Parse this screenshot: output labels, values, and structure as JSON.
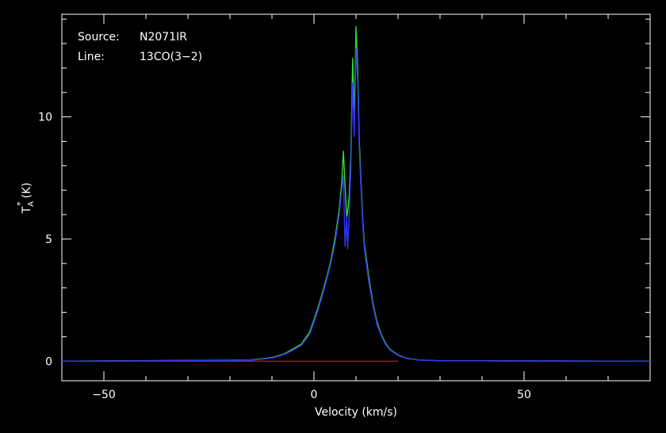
{
  "chart_data": {
    "type": "line",
    "title": "",
    "xlabel": "Velocity (km/s)",
    "ylabel": "T",
    "ylabel_sub": "A",
    "ylabel_sup": "*",
    "ylabel_unit": "(K)",
    "xlim": [
      -60,
      80
    ],
    "ylim": [
      -0.8,
      14.2
    ],
    "x_ticks": [
      -50,
      0,
      50
    ],
    "x_tick_labels": [
      "−50",
      "0",
      "50"
    ],
    "y_ticks": [
      0,
      5,
      10
    ],
    "y_tick_labels": [
      "0",
      "5",
      "10"
    ],
    "grid": false,
    "legend": "none",
    "annotations": [
      {
        "label": "Source:",
        "value": "N2071IR"
      },
      {
        "label": "Line:",
        "value": "13CO(3−2)"
      }
    ],
    "baseline": {
      "y": 0,
      "x_start": -60,
      "x_end": 20,
      "color": "#c83232"
    },
    "series": [
      {
        "color": "#32dc32",
        "x": [
          -60,
          -15,
          -10,
          -7,
          -5,
          -3,
          -1,
          0,
          1,
          2,
          3,
          4,
          5,
          6,
          6.6,
          7,
          7.4,
          7.8,
          8,
          8.4,
          8.8,
          9.2,
          9.6,
          10,
          10.4,
          10.8,
          11.2,
          11.6,
          12,
          13,
          14,
          15,
          16,
          17,
          18,
          20,
          22,
          25,
          30,
          80
        ],
        "y": [
          0,
          0.05,
          0.15,
          0.3,
          0.5,
          0.7,
          1.2,
          1.7,
          2.2,
          2.8,
          3.4,
          4.1,
          5.0,
          6.2,
          7.3,
          8.6,
          7.2,
          5.9,
          6.1,
          6.8,
          8.5,
          12.4,
          10.0,
          13.7,
          12.0,
          9.0,
          7.3,
          5.8,
          4.8,
          3.5,
          2.4,
          1.6,
          1.1,
          0.75,
          0.5,
          0.25,
          0.12,
          0.05,
          0.02,
          0
        ]
      },
      {
        "color": "#3232ff",
        "x": [
          -60,
          -15,
          -10,
          -7,
          -5,
          -3,
          -1,
          0,
          1,
          2,
          3,
          4,
          5,
          6,
          6.6,
          7,
          7.4,
          7.8,
          8,
          8.4,
          8.8,
          9.2,
          9.6,
          10,
          10.4,
          10.8,
          11.2,
          11.6,
          12,
          13,
          14,
          15,
          16,
          17,
          18,
          20,
          22,
          25,
          30,
          80
        ],
        "y": [
          0,
          0.04,
          0.13,
          0.28,
          0.45,
          0.65,
          1.1,
          1.6,
          2.1,
          2.7,
          3.3,
          4.0,
          4.8,
          6.0,
          7.0,
          7.6,
          4.7,
          5.9,
          4.6,
          6.0,
          8.0,
          11.4,
          9.2,
          12.8,
          11.5,
          8.6,
          7.0,
          5.6,
          4.6,
          3.3,
          2.3,
          1.5,
          1.05,
          0.7,
          0.47,
          0.23,
          0.11,
          0.05,
          0.02,
          0
        ]
      }
    ]
  }
}
